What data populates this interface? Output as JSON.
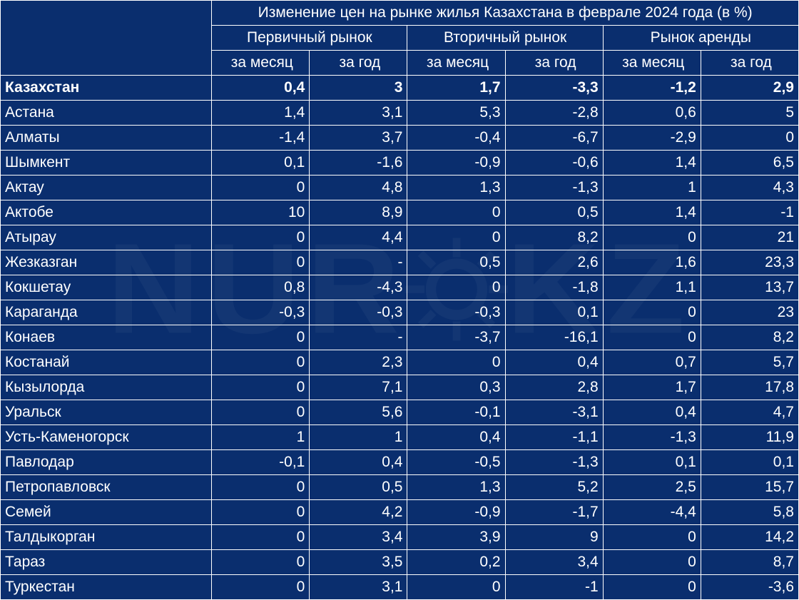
{
  "table": {
    "type": "table",
    "background_color": "#0a2e6e",
    "border_color": "#ffffff",
    "text_color": "#ffffff",
    "watermark_text": "NUR KZ",
    "watermark_color": "rgba(255,255,255,0.04)",
    "main_title": "Изменение цен на рынке жилья Казахстана в феврале 2024 года (в %)",
    "market_headers": [
      "Первичный рынок",
      "Вторичный рынок",
      "Рынок аренды"
    ],
    "period_headers": [
      "за месяц",
      "за год",
      "за месяц",
      "за год",
      "за месяц",
      "за год"
    ],
    "city_column_width": 296,
    "data_column_width": 137,
    "fontsize": 21,
    "rows": [
      {
        "city": "Казахстан",
        "bold": true,
        "values": [
          "0,4",
          "3",
          "1,7",
          "-3,3",
          "-1,2",
          "2,9"
        ]
      },
      {
        "city": "Астана",
        "bold": false,
        "values": [
          "1,4",
          "3,1",
          "5,3",
          "-2,8",
          "0,6",
          "5"
        ]
      },
      {
        "city": "Алматы",
        "bold": false,
        "values": [
          "-1,4",
          "3,7",
          "-0,4",
          "-6,7",
          "-2,9",
          "0"
        ]
      },
      {
        "city": "Шымкент",
        "bold": false,
        "values": [
          "0,1",
          "-1,6",
          "-0,9",
          "-0,6",
          "1,4",
          "6,5"
        ]
      },
      {
        "city": "Актау",
        "bold": false,
        "values": [
          "0",
          "4,8",
          "1,3",
          "-1,3",
          "1",
          "4,3"
        ]
      },
      {
        "city": "Актобе",
        "bold": false,
        "values": [
          "10",
          "8,9",
          "0",
          "0,5",
          "1,4",
          "-1"
        ]
      },
      {
        "city": "Атырау",
        "bold": false,
        "values": [
          "0",
          "4,4",
          "0",
          "8,2",
          "0",
          "21"
        ]
      },
      {
        "city": "Жезказган",
        "bold": false,
        "values": [
          "0",
          "-",
          "0,5",
          "2,6",
          "1,6",
          "23,3"
        ]
      },
      {
        "city": "Кокшетау",
        "bold": false,
        "values": [
          "0,8",
          "-4,3",
          "0",
          "-1,8",
          "1,1",
          "13,7"
        ]
      },
      {
        "city": "Караганда",
        "bold": false,
        "values": [
          "-0,3",
          "-0,3",
          "-0,3",
          "0,1",
          "0",
          "23"
        ]
      },
      {
        "city": "Конаев",
        "bold": false,
        "values": [
          "0",
          "-",
          "-3,7",
          "-16,1",
          "0",
          "8,2"
        ]
      },
      {
        "city": "Костанай",
        "bold": false,
        "values": [
          "0",
          "2,3",
          "0",
          "0,4",
          "0,7",
          "5,7"
        ]
      },
      {
        "city": "Кызылорда",
        "bold": false,
        "values": [
          "0",
          "7,1",
          "0,3",
          "2,8",
          "1,7",
          "17,8"
        ]
      },
      {
        "city": "Уральск",
        "bold": false,
        "values": [
          "0",
          "5,6",
          "-0,1",
          "-3,1",
          "0,4",
          "4,7"
        ]
      },
      {
        "city": "Усть-Каменогорск",
        "bold": false,
        "values": [
          "1",
          "1",
          "0,4",
          "-1,1",
          "-1,3",
          "11,9"
        ]
      },
      {
        "city": "Павлодар",
        "bold": false,
        "values": [
          "-0,1",
          "0,4",
          "-0,5",
          "-1,3",
          "0,1",
          "0,1"
        ]
      },
      {
        "city": "Петропавловск",
        "bold": false,
        "values": [
          "0",
          "0,5",
          "1,3",
          "5,2",
          "2,5",
          "15,7"
        ]
      },
      {
        "city": "Семей",
        "bold": false,
        "values": [
          "0",
          "4,2",
          "-0,9",
          "-1,7",
          "-4,4",
          "5,8"
        ]
      },
      {
        "city": "Талдыкорган",
        "bold": false,
        "values": [
          "0",
          "3,4",
          "3,9",
          "9",
          "0",
          "14,2"
        ]
      },
      {
        "city": "Тараз",
        "bold": false,
        "values": [
          "0",
          "3,5",
          "0,2",
          "3,4",
          "0",
          "8,7"
        ]
      },
      {
        "city": "Туркестан",
        "bold": false,
        "values": [
          "0",
          "3,1",
          "0",
          "-1",
          "0",
          "-3,6"
        ]
      }
    ]
  }
}
